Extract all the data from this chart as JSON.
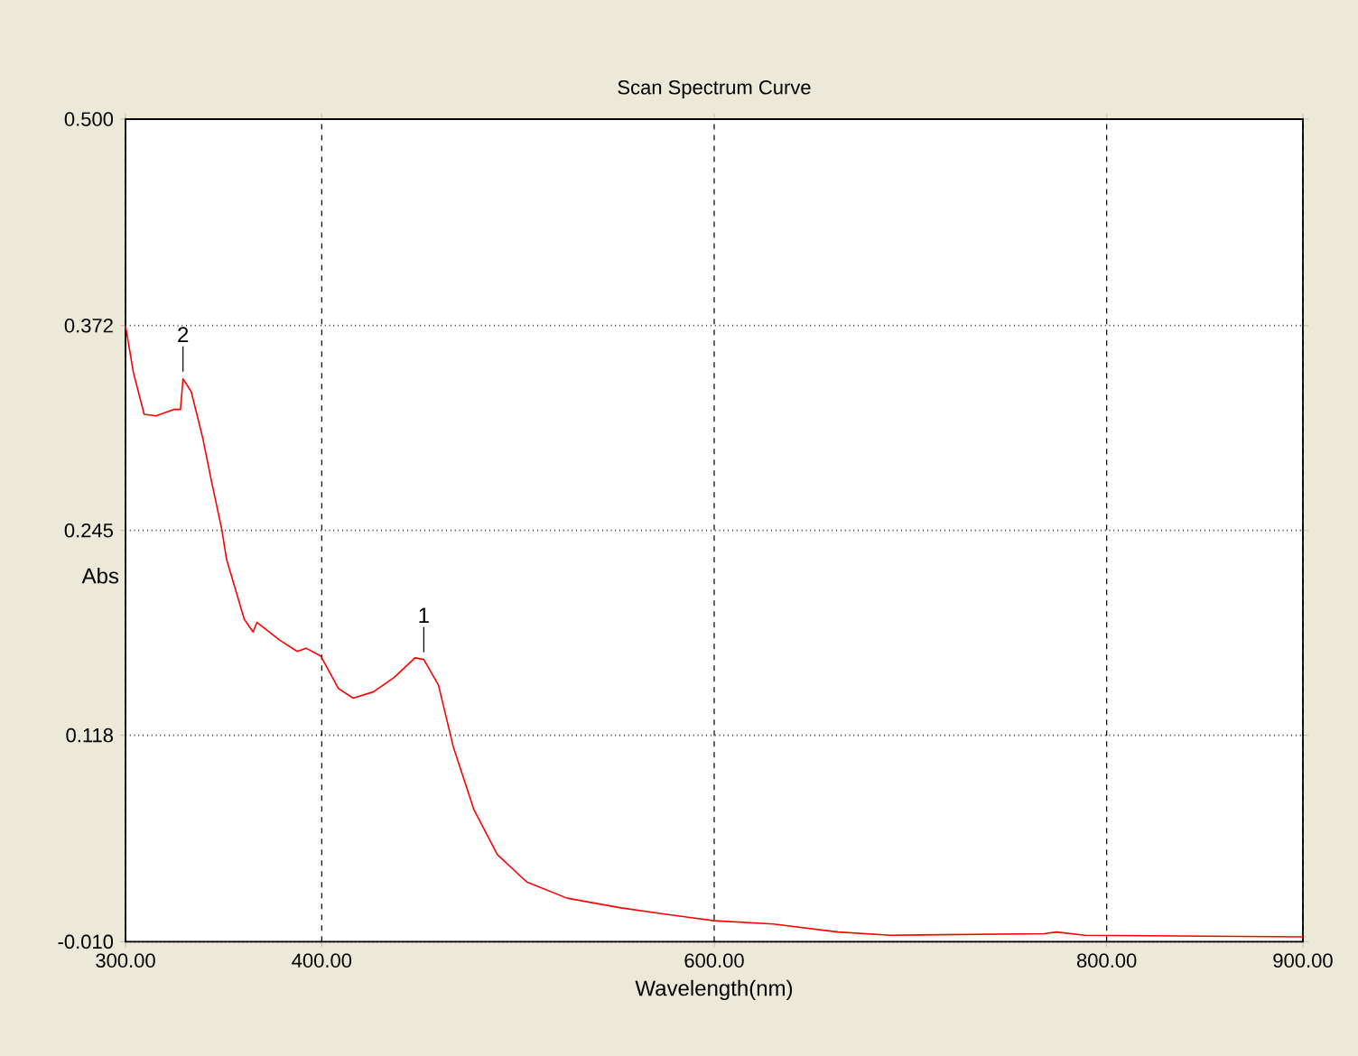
{
  "chart_data": {
    "type": "line",
    "title": "Scan Spectrum Curve",
    "xlabel": "Wavelength(nm)",
    "ylabel": "Abs",
    "x": [
      300,
      304,
      309.5,
      315.5,
      324.5,
      328,
      329.3,
      333.5,
      339.4,
      343.9,
      349,
      351.5,
      360.5,
      365,
      367,
      378.5,
      387.5,
      392,
      399.6,
      408.5,
      416,
      426.5,
      437,
      447.5,
      452,
      459.5,
      467,
      477.5,
      489.5,
      504.5,
      525,
      552.5,
      575.5,
      600,
      630,
      663,
      690,
      768,
      774.5,
      789,
      900
    ],
    "series": [
      {
        "color": "#ff0000",
        "values": [
          0.372,
          0.343,
          0.317,
          0.316,
          0.32,
          0.32,
          0.339,
          0.331,
          0.302,
          0.275,
          0.246,
          0.227,
          0.19,
          0.182,
          0.188,
          0.177,
          0.17,
          0.172,
          0.167,
          0.147,
          0.141,
          0.145,
          0.154,
          0.166,
          0.165,
          0.149,
          0.111,
          0.072,
          0.044,
          0.027,
          0.017,
          0.011,
          0.007,
          0.003,
          0.001,
          -0.004,
          -0.006,
          -0.005,
          -0.004,
          -0.006,
          -0.007
        ]
      }
    ],
    "xlim": [
      300,
      900
    ],
    "xticks": [
      {
        "value": 300,
        "label": "300.00"
      },
      {
        "value": 400,
        "label": "400.00"
      },
      {
        "value": 600,
        "label": "600.00"
      },
      {
        "value": 800,
        "label": "800.00"
      },
      {
        "value": 900,
        "label": "900.00"
      }
    ],
    "ylim": [
      -0.01,
      0.5
    ],
    "yticks": [
      {
        "value": -0.01,
        "label": "-0.010"
      },
      {
        "value": 0.118,
        "label": "0.118"
      },
      {
        "value": 0.245,
        "label": "0.245"
      },
      {
        "value": 0.372,
        "label": "0.372"
      },
      {
        "value": 0.5,
        "label": "0.500"
      }
    ],
    "grid": true,
    "marker": "none",
    "line_style": "solid",
    "annotations": [
      {
        "text": "2",
        "x": 329.3,
        "y": 0.339
      },
      {
        "text": "1",
        "x": 452,
        "y": 0.165
      }
    ]
  }
}
